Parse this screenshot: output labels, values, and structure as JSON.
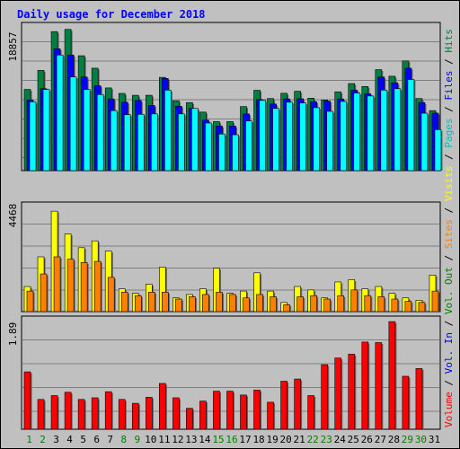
{
  "title": "Daily usage for December 2018",
  "colors": {
    "hits": "#008040",
    "files": "#0000ff",
    "pages": "#00ffff",
    "visits": "#ffff00",
    "sites": "#ff8000",
    "kbytes": "#ff0000",
    "date_weekday": "#000000",
    "date_weekend": "#008000"
  },
  "chart_data": [
    {
      "type": "bar",
      "panel": "top",
      "ytick": "18857",
      "ylim": [
        0,
        20250
      ],
      "categories": [
        "1",
        "2",
        "3",
        "4",
        "5",
        "6",
        "7",
        "8",
        "9",
        "10",
        "11",
        "12",
        "13",
        "14",
        "15",
        "16",
        "17",
        "18",
        "19",
        "20",
        "21",
        "22",
        "23",
        "24",
        "25",
        "26",
        "27",
        "28",
        "29",
        "30",
        "31"
      ],
      "legend": [
        "Hits",
        "Files",
        "Pages"
      ],
      "series": [
        {
          "name": "Hits",
          "values": [
            11100,
            13700,
            19000,
            19300,
            15700,
            14000,
            11300,
            10550,
            10300,
            10300,
            12750,
            9550,
            9300,
            8000,
            6700,
            6700,
            8750,
            10980,
            9850,
            10570,
            10850,
            9900,
            9650,
            10770,
            11900,
            11500,
            13800,
            12900,
            15000,
            9850,
            8200
          ]
        },
        {
          "name": "Files",
          "values": [
            9650,
            11200,
            16650,
            15800,
            12800,
            11600,
            9800,
            9350,
            9600,
            8900,
            12600,
            8800,
            8500,
            6900,
            6100,
            6100,
            7750,
            9700,
            9100,
            9800,
            9820,
            9400,
            9500,
            9800,
            11000,
            10500,
            12800,
            12000,
            14000,
            9300,
            7850
          ]
        },
        {
          "name": "Pages",
          "values": [
            9400,
            11100,
            15800,
            12800,
            11100,
            10400,
            8200,
            7650,
            7700,
            7750,
            11000,
            7750,
            8500,
            6500,
            5000,
            4900,
            6800,
            9600,
            8500,
            9350,
            9250,
            8600,
            8100,
            9450,
            10600,
            10200,
            11000,
            11200,
            12450,
            7850,
            5600
          ]
        }
      ]
    },
    {
      "type": "bar",
      "panel": "middle",
      "ytick": "4468",
      "ylim": [
        0,
        4800
      ],
      "categories": [
        "1",
        "2",
        "3",
        "4",
        "5",
        "6",
        "7",
        "8",
        "9",
        "10",
        "11",
        "12",
        "13",
        "14",
        "15",
        "16",
        "17",
        "18",
        "19",
        "20",
        "21",
        "22",
        "23",
        "24",
        "25",
        "26",
        "27",
        "28",
        "29",
        "30",
        "31"
      ],
      "legend": [
        "Visits",
        "Sites"
      ],
      "series": [
        {
          "name": "Visits",
          "values": [
            1100,
            2400,
            4400,
            3400,
            2800,
            3100,
            2650,
            1000,
            800,
            1200,
            1950,
            600,
            750,
            1000,
            1900,
            800,
            900,
            1700,
            900,
            400,
            1100,
            950,
            600,
            1300,
            1400,
            1000,
            1100,
            800,
            600,
            500,
            1600
          ]
        },
        {
          "name": "Sites",
          "values": [
            900,
            1650,
            2400,
            2300,
            2150,
            2200,
            1500,
            850,
            700,
            850,
            850,
            550,
            650,
            750,
            850,
            750,
            600,
            750,
            650,
            300,
            650,
            700,
            550,
            700,
            950,
            700,
            650,
            550,
            450,
            400,
            900
          ]
        }
      ]
    },
    {
      "type": "bar",
      "panel": "bottom",
      "ytick": "1.89",
      "ylim": [
        0,
        2.05
      ],
      "categories": [
        "1",
        "2",
        "3",
        "4",
        "5",
        "6",
        "7",
        "8",
        "9",
        "10",
        "11",
        "12",
        "13",
        "14",
        "15",
        "16",
        "17",
        "18",
        "19",
        "20",
        "21",
        "22",
        "23",
        "24",
        "25",
        "26",
        "27",
        "28",
        "29",
        "30",
        "31"
      ],
      "legend": [
        "Volume"
      ],
      "series": [
        {
          "name": "Volume",
          "values": [
            1.04,
            0.54,
            0.61,
            0.67,
            0.54,
            0.57,
            0.68,
            0.54,
            0.47,
            0.58,
            0.83,
            0.57,
            0.38,
            0.51,
            0.69,
            0.69,
            0.62,
            0.71,
            0.49,
            0.87,
            0.91,
            0.61,
            1.17,
            1.29,
            1.36,
            1.58,
            1.57,
            1.95,
            0.96,
            1.1,
            0
          ]
        }
      ]
    }
  ],
  "legend_right": [
    "Volume",
    "Vol. In",
    "Vol. Out",
    "Sites",
    "Visits",
    "Pages",
    "Files",
    "Hits"
  ]
}
